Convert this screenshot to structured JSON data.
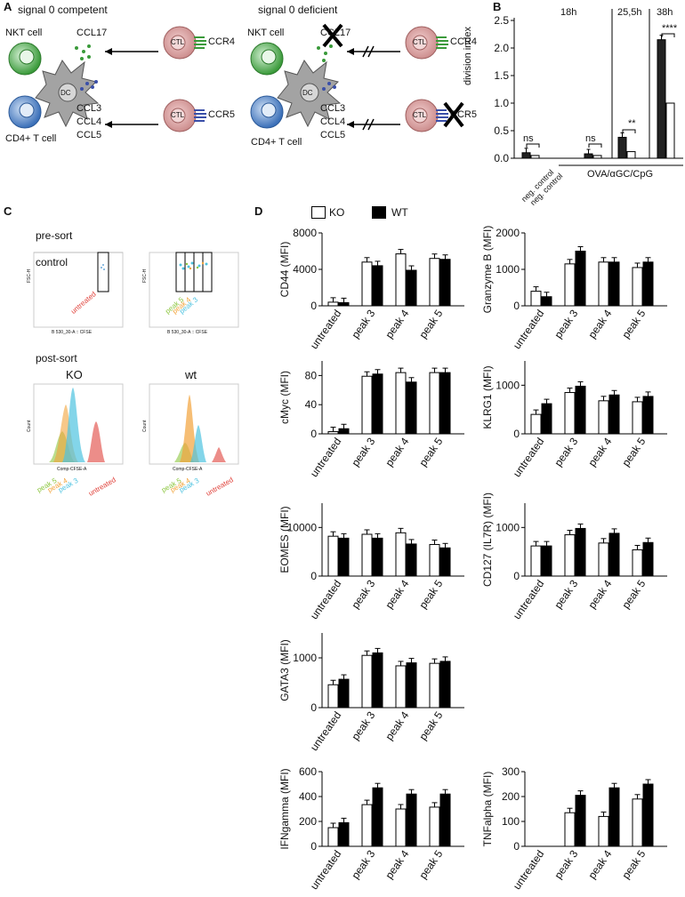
{
  "panels": {
    "A": "A",
    "B": "B",
    "C": "C",
    "D": "D"
  },
  "panel_a": {
    "left_title": "signal 0 competent",
    "right_title": "signal 0 deficient",
    "nkt_label": "NKT cell",
    "cd4_label": "CD4+ T cell",
    "dc_label": "DC",
    "ctl_label": "CTL",
    "ccl17": "CCL17",
    "ccl3": "CCL3",
    "ccl4": "CCL4",
    "ccl5": "CCL5",
    "ccr4": "CCR4",
    "ccr5": "CCR5",
    "colors": {
      "nkt": "#3a9a3a",
      "cd4": "#3a6fb8",
      "dc": "#9a9a9a",
      "ctl": "#d99a9a",
      "ccr4": "#3a9a3a",
      "ccr5": "#3a4fa8"
    }
  },
  "panel_b": {
    "ylabel": "division index",
    "time_labels": [
      "18h",
      "25,5h",
      "38h"
    ],
    "xlabel_group": "OVA/αGC/CpG",
    "neg_labels": [
      "neg. control",
      "neg. control"
    ],
    "ns": "ns",
    "sig2": "**",
    "sig4": "****",
    "ticks": [
      "0.0",
      "0.5",
      "1.0",
      "1.5",
      "2.0",
      "2.5"
    ]
  },
  "panel_c": {
    "pre_sort": "pre-sort",
    "post_sort": "post-sort",
    "control": "control",
    "untreated": "untreated",
    "ko": "KO",
    "wt": "wt",
    "peaks": [
      "peak 5",
      "peak 4",
      "peak 3"
    ],
    "xaxis": "B 530_30-A :: CFSE",
    "xaxis2": "Comp-CFSE-A",
    "yaxis": "FSC-H",
    "count": "Count",
    "colors": {
      "peak5": "#8cc63f",
      "peak4": "#f2a33a",
      "peak3": "#4fc3e0",
      "untreated": "#e0413a"
    }
  },
  "panel_d": {
    "legend": {
      "ko": "KO",
      "wt": "WT"
    },
    "categories": [
      "untreated",
      "peak 3",
      "peak 4",
      "peak 5"
    ]
  },
  "chart_data": [
    {
      "type": "bar",
      "ylabel": "division index",
      "groups": [
        "neg. control",
        "18h",
        "25,5h",
        "38h"
      ],
      "series": [
        {
          "values": [
            0.1,
            0.08,
            0.38,
            2.15
          ]
        },
        {
          "values": [
            0.05,
            0.05,
            0.12,
            1.0
          ]
        }
      ],
      "ylim": [
        0,
        2.5
      ]
    },
    {
      "type": "bar",
      "ylabel": "CD44 (MFI)",
      "categories": [
        "untreated",
        "peak 3",
        "peak 4",
        "peak 5"
      ],
      "series": [
        {
          "name": "KO",
          "values": [
            400,
            4800,
            5700,
            5200
          ]
        },
        {
          "name": "WT",
          "values": [
            350,
            4400,
            3900,
            5100
          ]
        }
      ],
      "ylim": [
        0,
        8000
      ],
      "ticks": [
        0,
        4000,
        8000
      ]
    },
    {
      "type": "bar",
      "ylabel": "Granzyme B (MFI)",
      "categories": [
        "untreated",
        "peak 3",
        "peak 4",
        "peak 5"
      ],
      "series": [
        {
          "name": "KO",
          "values": [
            400,
            1150,
            1200,
            1050
          ]
        },
        {
          "name": "WT",
          "values": [
            250,
            1500,
            1200,
            1200
          ]
        }
      ],
      "ylim": [
        0,
        2000
      ],
      "ticks": [
        0,
        1000,
        2000
      ]
    },
    {
      "type": "bar",
      "ylabel": "cMyc (MFI)",
      "categories": [
        "untreated",
        "peak 3",
        "peak 4",
        "peak 5"
      ],
      "series": [
        {
          "name": "KO",
          "values": [
            3,
            79,
            84,
            84
          ]
        },
        {
          "name": "WT",
          "values": [
            7,
            82,
            71,
            84
          ]
        }
      ],
      "ylim": [
        0,
        100
      ],
      "ticks": [
        0,
        40,
        80
      ]
    },
    {
      "type": "bar",
      "ylabel": "KLRG1 (MFI)",
      "categories": [
        "untreated",
        "peak 3",
        "peak 4",
        "peak 5"
      ],
      "series": [
        {
          "name": "KO",
          "values": [
            400,
            850,
            680,
            660
          ]
        },
        {
          "name": "WT",
          "values": [
            620,
            980,
            800,
            770
          ]
        }
      ],
      "ylim": [
        0,
        1500
      ],
      "ticks": [
        0,
        1000
      ]
    },
    {
      "type": "bar",
      "ylabel": "EOMES (MFI)",
      "categories": [
        "untreated",
        "peak 3",
        "peak 4",
        "peak 5"
      ],
      "series": [
        {
          "name": "KO",
          "values": [
            8200,
            8600,
            8900,
            6500
          ]
        },
        {
          "name": "WT",
          "values": [
            7800,
            7800,
            6600,
            5800
          ]
        }
      ],
      "ylim": [
        0,
        15000
      ],
      "ticks": [
        0,
        10000
      ]
    },
    {
      "type": "bar",
      "ylabel": "CD127 (IL7R) (MFI)",
      "categories": [
        "untreated",
        "peak 3",
        "peak 4",
        "peak 5"
      ],
      "series": [
        {
          "name": "KO",
          "values": [
            620,
            850,
            680,
            540
          ]
        },
        {
          "name": "WT",
          "values": [
            620,
            980,
            880,
            690
          ]
        }
      ],
      "ylim": [
        0,
        1500
      ],
      "ticks": [
        0,
        1000
      ]
    },
    {
      "type": "bar",
      "ylabel": "GATA3 (MFI)",
      "categories": [
        "untreated",
        "peak 3",
        "peak 4",
        "peak 5"
      ],
      "series": [
        {
          "name": "KO",
          "values": [
            460,
            1050,
            840,
            890
          ]
        },
        {
          "name": "WT",
          "values": [
            570,
            1100,
            900,
            930
          ]
        }
      ],
      "ylim": [
        0,
        1500
      ],
      "ticks": [
        0,
        1000
      ]
    },
    {
      "type": "bar",
      "ylabel": "IFNgamma (MFI)",
      "categories": [
        "untreated",
        "peak 3",
        "peak 4",
        "peak 5"
      ],
      "series": [
        {
          "name": "KO",
          "values": [
            150,
            335,
            300,
            315
          ]
        },
        {
          "name": "WT",
          "values": [
            190,
            470,
            420,
            420
          ]
        }
      ],
      "ylim": [
        0,
        600
      ],
      "ticks": [
        0,
        200,
        400,
        600
      ]
    },
    {
      "type": "bar",
      "ylabel": "TNFalpha (MFI)",
      "categories": [
        "untreated",
        "peak 3",
        "peak 4",
        "peak 5"
      ],
      "series": [
        {
          "name": "KO",
          "values": [
            0,
            135,
            120,
            190
          ]
        },
        {
          "name": "WT",
          "values": [
            0,
            205,
            235,
            250
          ]
        }
      ],
      "ylim": [
        0,
        300
      ],
      "ticks": [
        0,
        100,
        200,
        300
      ]
    }
  ]
}
